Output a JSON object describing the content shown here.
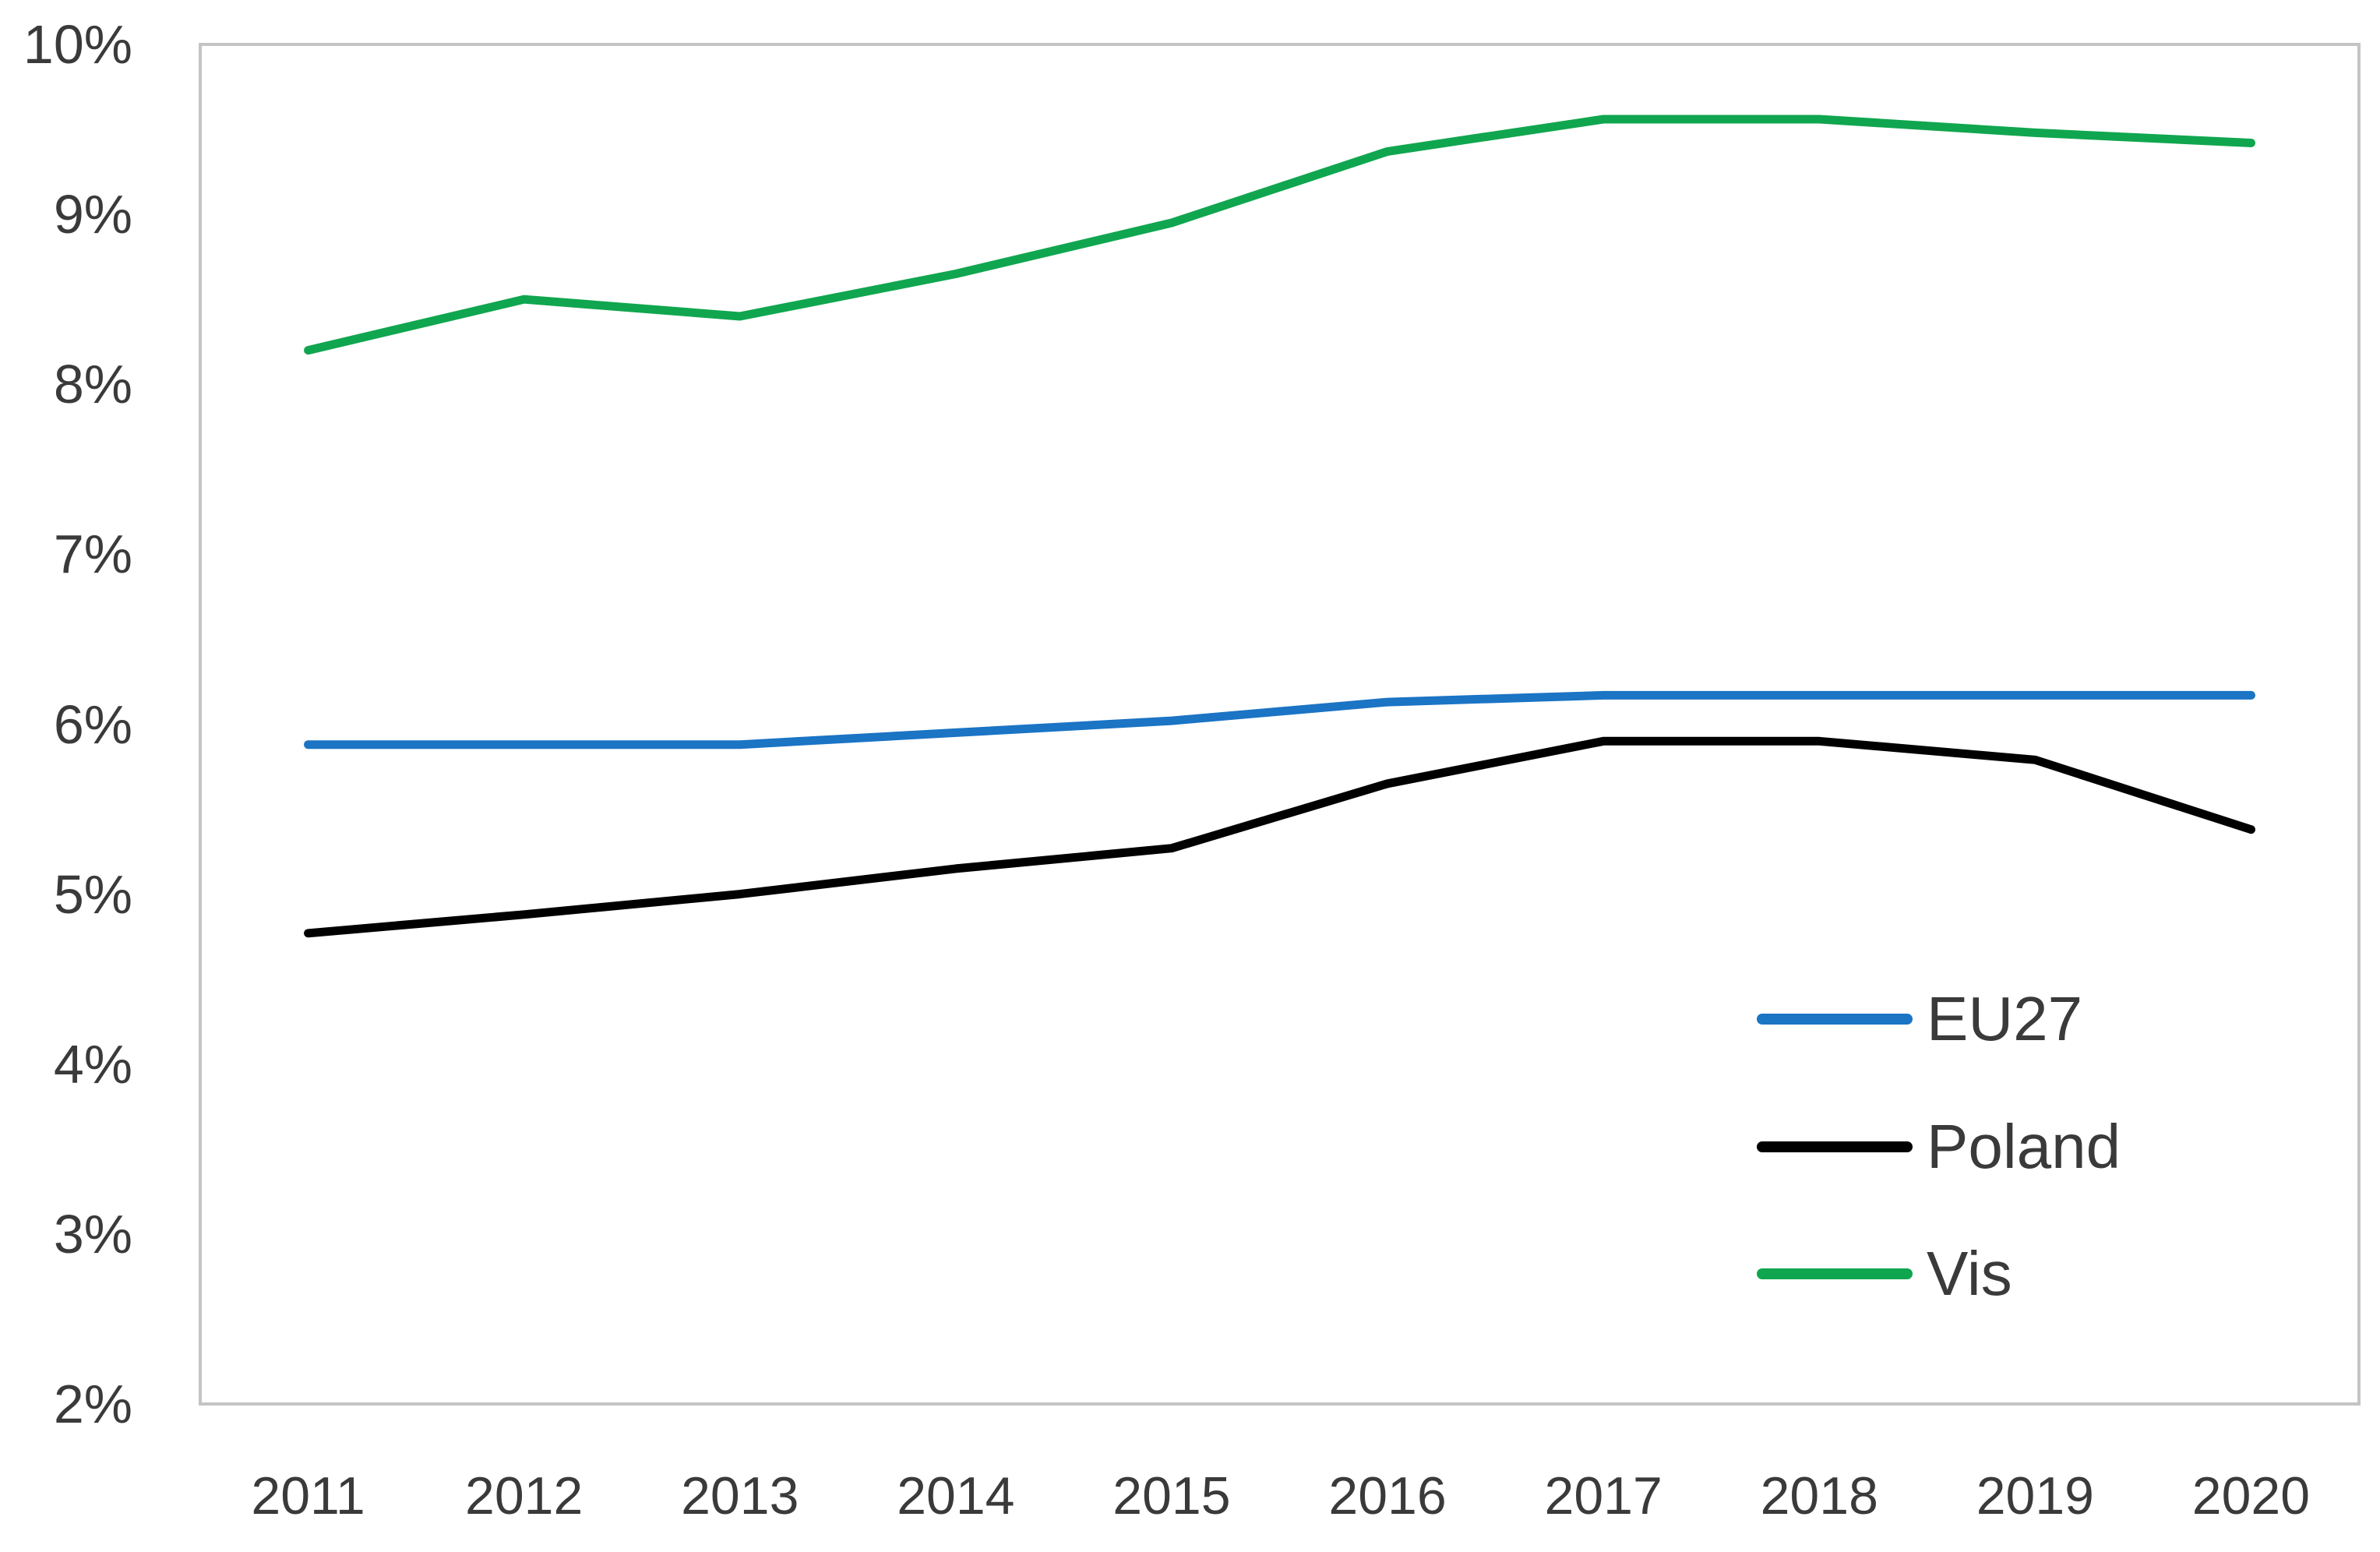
{
  "chart_data": {
    "type": "line",
    "title": "",
    "xlabel": "",
    "ylabel": "",
    "categories": [
      "2011",
      "2012",
      "2013",
      "2014",
      "2015",
      "2016",
      "2017",
      "2018",
      "2019",
      "2020"
    ],
    "series": [
      {
        "name": "EU27",
        "color": "#1B74C4",
        "values": [
          5.88,
          5.88,
          5.88,
          5.95,
          6.02,
          6.13,
          6.17,
          6.17,
          6.17,
          6.17
        ]
      },
      {
        "name": "Poland",
        "color": "#000000",
        "values": [
          4.77,
          4.88,
          5.0,
          5.15,
          5.27,
          5.65,
          5.9,
          5.9,
          5.79,
          5.38
        ]
      },
      {
        "name": "Vis",
        "color": "#10A64F",
        "values": [
          8.2,
          8.5,
          8.4,
          8.65,
          8.95,
          9.37,
          9.56,
          9.56,
          9.48,
          9.42
        ]
      }
    ],
    "y_ticks": [
      "10%",
      "9%",
      "8%",
      "7%",
      "6%",
      "5%",
      "4%",
      "3%",
      "2%"
    ],
    "y_tick_values": [
      10,
      9,
      8,
      7,
      6,
      5,
      4,
      3,
      2
    ],
    "ylim": [
      2,
      10
    ],
    "grid": false,
    "legend_position": "inside-lower-right",
    "colors": {
      "axis_text": "#3A3A3A",
      "plot_border": "#C4C4C4",
      "background": "#FFFFFF"
    }
  }
}
